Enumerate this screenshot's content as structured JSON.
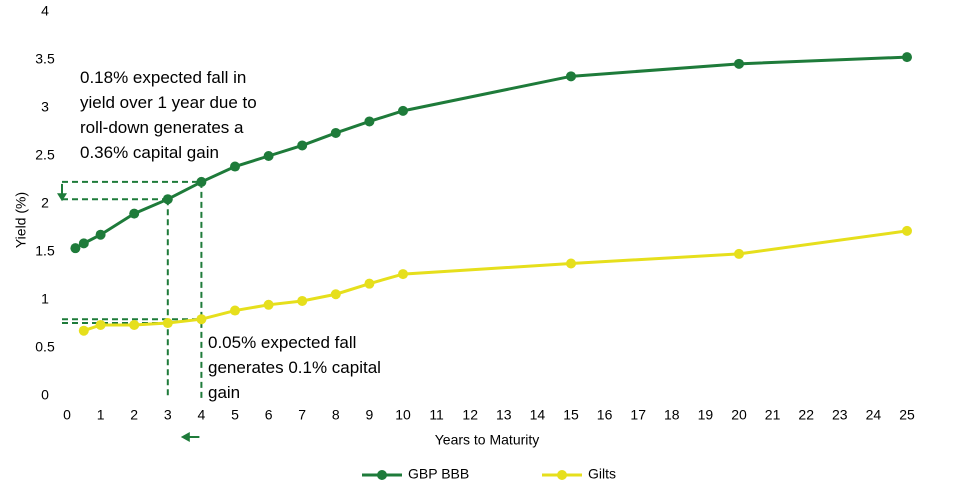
{
  "chart_data": {
    "type": "line",
    "x": [
      0.25,
      0.5,
      1,
      2,
      3,
      4,
      5,
      6,
      7,
      8,
      9,
      10,
      15,
      20,
      25
    ],
    "series": [
      {
        "name": "GBP BBB",
        "color": "#1e7b3a",
        "values": [
          1.54,
          1.59,
          1.68,
          1.9,
          2.05,
          2.23,
          2.39,
          2.5,
          2.61,
          2.74,
          2.86,
          2.97,
          3.33,
          3.46,
          3.53
        ]
      },
      {
        "name": "Gilts",
        "color": "#e6df1c",
        "values": [
          null,
          0.68,
          0.74,
          0.74,
          0.76,
          0.8,
          0.89,
          0.95,
          0.99,
          1.06,
          1.17,
          1.27,
          1.38,
          1.48,
          1.72
        ]
      }
    ],
    "xlabel": "Years to Maturity",
    "ylabel": "Yield (%)",
    "xlim": [
      0,
      25
    ],
    "xticks": [
      0,
      1,
      2,
      3,
      4,
      5,
      6,
      7,
      8,
      9,
      10,
      11,
      12,
      13,
      14,
      15,
      16,
      17,
      18,
      19,
      20,
      21,
      22,
      23,
      24,
      25
    ],
    "ylim": [
      0,
      4
    ],
    "yticks": [
      0,
      0.5,
      1,
      1.5,
      2,
      2.5,
      3,
      3.5,
      4
    ],
    "grid": false,
    "legend": "bottom",
    "annotations": [
      [
        "0.18% expected fall in",
        "yield over 1 year due to",
        "roll-down generates a",
        "0.36% capital gain"
      ],
      [
        "0.05% expected fall",
        "generates 0.1% capital",
        "gain"
      ]
    ]
  }
}
